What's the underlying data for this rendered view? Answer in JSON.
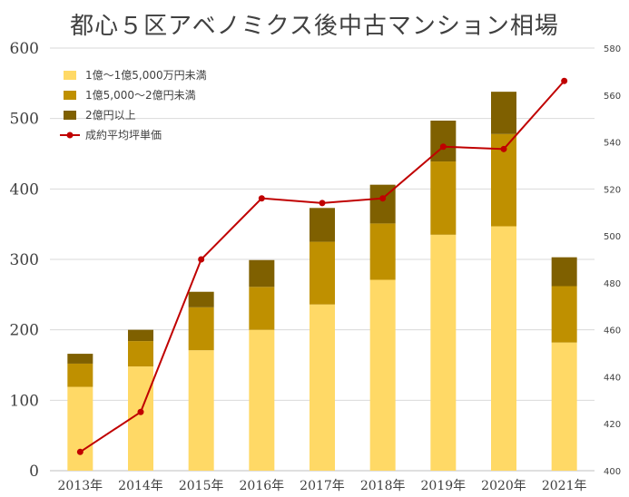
{
  "title": "都心５区アベノミクス後中古マンション相場",
  "chart_data": {
    "type": "bar",
    "categories": [
      "2013年",
      "2014年",
      "2015年",
      "2016年",
      "2017年",
      "2018年",
      "2019年",
      "2020年",
      "2021年"
    ],
    "series": [
      {
        "name": "1億～1億5,000万円未満",
        "type": "bar",
        "axis": "left",
        "color": "#FFD966",
        "values": [
          119,
          148,
          171,
          200,
          236,
          271,
          335,
          347,
          182
        ]
      },
      {
        "name": "1億5,000～2億円未満",
        "type": "bar",
        "axis": "left",
        "color": "#BF9000",
        "values": [
          33,
          36,
          61,
          61,
          89,
          80,
          104,
          131,
          80
        ]
      },
      {
        "name": "2億円以上",
        "type": "bar",
        "axis": "left",
        "color": "#7F6000",
        "values": [
          14,
          16,
          22,
          38,
          48,
          55,
          58,
          60,
          41
        ]
      },
      {
        "name": "成約平均坪単価",
        "type": "line",
        "axis": "right",
        "color": "#C00000",
        "values": [
          408,
          425,
          490,
          516,
          514,
          516,
          538,
          537,
          566
        ]
      }
    ],
    "y_left": {
      "min": 0,
      "max": 600,
      "step": 100,
      "ticks": [
        "0",
        "100",
        "200",
        "300",
        "400",
        "500",
        "600"
      ]
    },
    "y_right": {
      "min": 400,
      "max": 580,
      "step": 20,
      "ticks": [
        "400",
        "420",
        "440",
        "460",
        "480",
        "500",
        "520",
        "540",
        "560",
        "580"
      ]
    },
    "stacked": true,
    "grid": true,
    "legend_position": "top-left"
  }
}
